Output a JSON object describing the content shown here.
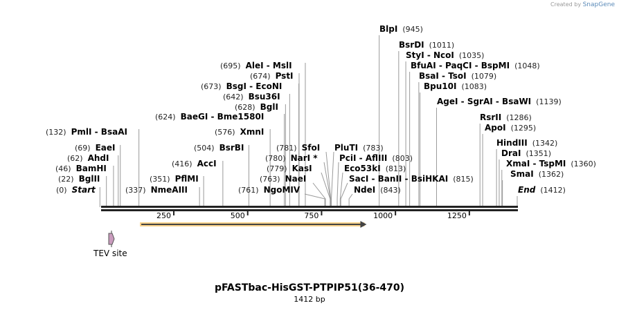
{
  "brand": {
    "prefix": "Created by",
    "name": "SnapGene"
  },
  "title": "pFASTbac-HisGST-PTPIP51(36-470)",
  "length_label": "1412 bp",
  "sequence_length": 1412,
  "ticks": [
    "250",
    "500",
    "750",
    "1000",
    "1250"
  ],
  "features": [
    {
      "name": "TEV site",
      "color": "#c99bbd"
    },
    {
      "name": "",
      "start": 140,
      "end": 900,
      "color": "#f7c66b"
    }
  ],
  "enzymes": [
    {
      "name": "Start",
      "pos": "(0)",
      "bp": 0
    },
    {
      "name": "BglII",
      "pos": "(22)",
      "bp": 22
    },
    {
      "name": "BamHI",
      "pos": "(46)",
      "bp": 46
    },
    {
      "name": "AhdI",
      "pos": "(62)",
      "bp": 62
    },
    {
      "name": "EaeI",
      "pos": "(69)",
      "bp": 69
    },
    {
      "name": "PmlI  -  BsaAI",
      "pos": "(132)",
      "bp": 132
    },
    {
      "name": "NmeAIII",
      "pos": "(337)",
      "bp": 337
    },
    {
      "name": "PflMI",
      "pos": "(351)",
      "bp": 351
    },
    {
      "name": "AccI",
      "pos": "(416)",
      "bp": 416
    },
    {
      "name": "BsrBI",
      "pos": "(504)",
      "bp": 504
    },
    {
      "name": "XmnI",
      "pos": "(576)",
      "bp": 576
    },
    {
      "name": "BaeGI  -  Bme1580I",
      "pos": "(624)",
      "bp": 624
    },
    {
      "name": "BglI",
      "pos": "(628)",
      "bp": 628
    },
    {
      "name": "Bsu36I",
      "pos": "(642)",
      "bp": 642
    },
    {
      "name": "BsgI  -  EcoNI",
      "pos": "(673)",
      "bp": 673
    },
    {
      "name": "PstI",
      "pos": "(674)",
      "bp": 674
    },
    {
      "name": "AleI  -  MslI",
      "pos": "(695)",
      "bp": 695
    },
    {
      "name": "NgoMIV",
      "pos": "(761)",
      "bp": 761
    },
    {
      "name": "NaeI",
      "pos": "(763)",
      "bp": 763
    },
    {
      "name": "KasI",
      "pos": "(779)",
      "bp": 779
    },
    {
      "name": "NarI *",
      "pos": "(780)",
      "bp": 780
    },
    {
      "name": "SfoI",
      "pos": "(781)",
      "bp": 781
    },
    {
      "name": "PluTI",
      "pos": "(783)",
      "bp": 783
    },
    {
      "name": "PciI  -  AflIII",
      "pos": "(803)",
      "bp": 803
    },
    {
      "name": "Eco53kI",
      "pos": "(813)",
      "bp": 813
    },
    {
      "name": "SacI  -  BanII  -  BsiHKAI",
      "pos": "(815)",
      "bp": 815
    },
    {
      "name": "NdeI",
      "pos": "(843)",
      "bp": 843
    },
    {
      "name": "BlpI",
      "pos": "(945)",
      "bp": 945
    },
    {
      "name": "BsrDI",
      "pos": "(1011)",
      "bp": 1011
    },
    {
      "name": "StyI  -  NcoI",
      "pos": "(1035)",
      "bp": 1035
    },
    {
      "name": "BfuAI  -  PaqCI  -  BspMI",
      "pos": "(1048)",
      "bp": 1048
    },
    {
      "name": "BsaI  -  TsoI",
      "pos": "(1079)",
      "bp": 1079
    },
    {
      "name": "Bpu10I",
      "pos": "(1083)",
      "bp": 1083
    },
    {
      "name": "AgeI  -  SgrAI  -  BsaWI",
      "pos": "(1139)",
      "bp": 1139
    },
    {
      "name": "RsrII",
      "pos": "(1286)",
      "bp": 1286
    },
    {
      "name": "ApoI",
      "pos": "(1295)",
      "bp": 1295
    },
    {
      "name": "HindIII",
      "pos": "(1342)",
      "bp": 1342
    },
    {
      "name": "DraI",
      "pos": "(1351)",
      "bp": 1351
    },
    {
      "name": "XmaI  -  TspMI",
      "pos": "(1360)",
      "bp": 1360
    },
    {
      "name": "SmaI",
      "pos": "(1362)",
      "bp": 1362
    },
    {
      "name": "End",
      "pos": "(1412)",
      "bp": 1412
    }
  ]
}
